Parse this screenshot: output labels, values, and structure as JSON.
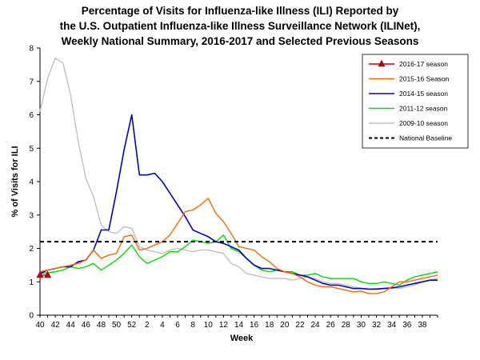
{
  "title": {
    "line1": "Percentage of Visits for Influenza-like Illness (ILI) Reported by",
    "line2": "the U.S. Outpatient Influenza-like Illness Surveillance Network (ILINet),",
    "line3": "Weekly National Summary, 2016-2017 and Selected Previous Seasons"
  },
  "chart_data": {
    "type": "line",
    "title": "Percentage of Visits for Influenza-like Illness (ILI) Reported by the U.S. Outpatient Influenza-like Illness Surveillance Network (ILINet), Weekly National Summary, 2016-2017 and Selected Previous Seasons",
    "xlabel": "Week",
    "ylabel": "% of Visits for ILI",
    "ylim": [
      0,
      8
    ],
    "yticks": [
      "0",
      "1",
      "2",
      "3",
      "4",
      "5",
      "6",
      "7",
      "8"
    ],
    "xticks": [
      "40",
      "42",
      "44",
      "46",
      "48",
      "50",
      "52",
      "2",
      "4",
      "6",
      "8",
      "10",
      "12",
      "14",
      "16",
      "18",
      "20",
      "22",
      "24",
      "26",
      "28",
      "30",
      "32",
      "34",
      "36",
      "38"
    ],
    "x_weeks": [
      "40",
      "41",
      "42",
      "43",
      "44",
      "45",
      "46",
      "47",
      "48",
      "49",
      "50",
      "51",
      "52",
      "53",
      "1",
      "2",
      "3",
      "4",
      "5",
      "6",
      "7",
      "8",
      "9",
      "10",
      "11",
      "12",
      "13",
      "14",
      "15",
      "16",
      "17",
      "18",
      "19",
      "20",
      "21",
      "22",
      "23",
      "24",
      "25",
      "26",
      "27",
      "28",
      "29",
      "30",
      "31",
      "32",
      "33",
      "34",
      "35",
      "36",
      "37",
      "38",
      "39"
    ],
    "grid": false,
    "legend_position": "top-right",
    "series": [
      {
        "name": "2016-17 season",
        "color": "#c00000",
        "marker": "triangle",
        "values": [
          1.2,
          1.2
        ]
      },
      {
        "name": "2015-16 Season",
        "color": "#ff6600",
        "values": [
          1.3,
          1.35,
          1.4,
          1.45,
          1.5,
          1.55,
          1.65,
          1.95,
          1.7,
          1.8,
          1.85,
          2.35,
          2.4,
          1.95,
          2.0,
          2.1,
          2.2,
          2.4,
          2.75,
          3.1,
          3.15,
          3.3,
          3.5,
          3.05,
          2.8,
          2.45,
          2.05,
          2.0,
          1.95,
          1.75,
          1.6,
          1.4,
          1.3,
          1.25,
          1.15,
          1.0,
          0.9,
          0.85,
          0.85,
          0.8,
          0.75,
          0.7,
          0.72,
          0.65,
          0.65,
          0.7,
          0.85,
          1.0,
          1.0,
          1.05,
          1.1,
          1.15,
          1.2
        ]
      },
      {
        "name": "2014-15 season",
        "color": "#0000cc",
        "values": [
          1.25,
          1.35,
          1.4,
          1.45,
          1.45,
          1.6,
          1.65,
          1.95,
          2.55,
          2.55,
          3.7,
          4.95,
          6.0,
          4.2,
          4.2,
          4.25,
          4.0,
          3.65,
          3.3,
          2.95,
          2.55,
          2.45,
          2.35,
          2.2,
          2.15,
          2.05,
          1.95,
          1.7,
          1.5,
          1.4,
          1.4,
          1.35,
          1.3,
          1.25,
          1.2,
          1.15,
          1.05,
          0.95,
          0.9,
          0.9,
          0.85,
          0.8,
          0.8,
          0.78,
          0.78,
          0.8,
          0.82,
          0.85,
          0.9,
          0.95,
          1.0,
          1.05,
          1.05
        ]
      },
      {
        "name": "2011-12 season",
        "color": "#00dd00",
        "values": [
          1.25,
          1.27,
          1.3,
          1.35,
          1.45,
          1.4,
          1.45,
          1.55,
          1.35,
          1.5,
          1.65,
          1.85,
          2.1,
          1.75,
          1.55,
          1.65,
          1.75,
          1.9,
          1.9,
          2.05,
          2.25,
          2.2,
          2.15,
          2.2,
          2.4,
          2.0,
          1.9,
          1.7,
          1.5,
          1.35,
          1.3,
          1.35,
          1.3,
          1.3,
          1.2,
          1.2,
          1.25,
          1.15,
          1.1,
          1.1,
          1.1,
          1.1,
          1.0,
          0.95,
          0.95,
          1.0,
          0.95,
          0.9,
          1.05,
          1.15,
          1.2,
          1.25,
          1.3
        ]
      },
      {
        "name": "2009-10 season",
        "color": "#c0c0c0",
        "values": [
          6.1,
          7.1,
          7.7,
          7.55,
          6.6,
          5.2,
          4.1,
          3.55,
          2.7,
          2.5,
          2.45,
          2.65,
          2.6,
          2.05,
          1.95,
          1.9,
          1.85,
          1.95,
          2.0,
          1.95,
          1.9,
          1.95,
          1.95,
          1.9,
          1.85,
          1.55,
          1.45,
          1.25,
          1.2,
          1.15,
          1.1,
          1.1,
          1.1,
          1.05,
          1.1,
          1.15,
          1.1,
          1.0,
          0.95,
          0.95,
          0.9,
          0.85,
          0.8,
          0.78,
          0.8,
          0.8,
          0.8,
          0.8,
          0.85,
          0.9,
          1.0,
          1.05,
          1.1
        ]
      }
    ],
    "baseline": {
      "name": "National Baseline",
      "value": 2.2,
      "color": "#000000"
    }
  }
}
